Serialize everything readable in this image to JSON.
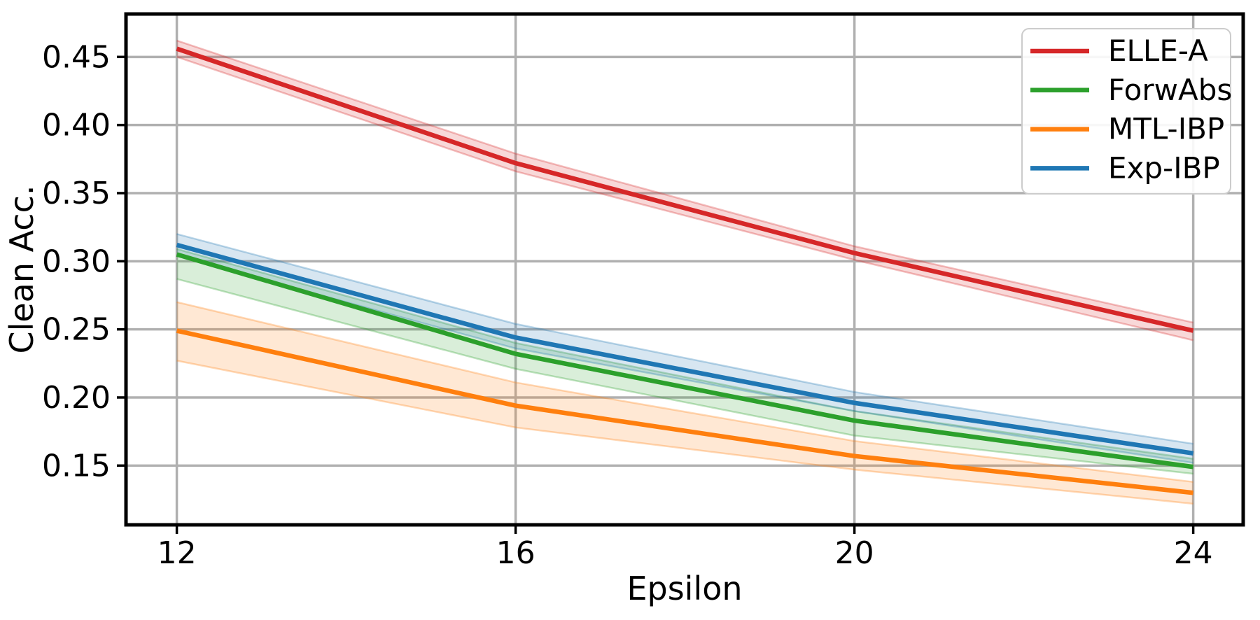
{
  "chart_data": {
    "type": "line",
    "title": "",
    "xlabel": "Epsilon",
    "ylabel": "Clean Acc.",
    "x": [
      12,
      16,
      20,
      24
    ],
    "series": [
      {
        "name": "ELLE-A",
        "color": "#d62728",
        "values": [
          0.456,
          0.372,
          0.306,
          0.249
        ],
        "band_upper": [
          0.462,
          0.379,
          0.311,
          0.255
        ],
        "band_lower": [
          0.45,
          0.366,
          0.301,
          0.242
        ]
      },
      {
        "name": "ForwAbs",
        "color": "#2ca02c",
        "values": [
          0.305,
          0.232,
          0.183,
          0.149
        ],
        "band_upper": [
          0.309,
          0.24,
          0.19,
          0.155
        ],
        "band_lower": [
          0.287,
          0.221,
          0.172,
          0.144
        ]
      },
      {
        "name": "MTL-IBP",
        "color": "#ff7f0e",
        "values": [
          0.249,
          0.194,
          0.157,
          0.13
        ],
        "band_upper": [
          0.27,
          0.211,
          0.168,
          0.138
        ],
        "band_lower": [
          0.227,
          0.178,
          0.147,
          0.122
        ]
      },
      {
        "name": "Exp-IBP",
        "color": "#1f77b4",
        "values": [
          0.312,
          0.244,
          0.196,
          0.159
        ],
        "band_upper": [
          0.32,
          0.254,
          0.204,
          0.166
        ],
        "band_lower": [
          0.304,
          0.236,
          0.19,
          0.152
        ]
      }
    ],
    "xticks": [
      12,
      16,
      20,
      24
    ],
    "xtick_labels": [
      "12",
      "16",
      "20",
      "24"
    ],
    "yticks": [
      0.15,
      0.2,
      0.25,
      0.3,
      0.35,
      0.4,
      0.45
    ],
    "ytick_labels": [
      "0.15",
      "0.20",
      "0.25",
      "0.30",
      "0.35",
      "0.40",
      "0.45"
    ],
    "xlim": [
      11.4,
      24.59
    ],
    "ylim": [
      0.1065,
      0.4815
    ],
    "grid": true,
    "legend_position": "upper right",
    "legend": [
      "ELLE-A",
      "ForwAbs",
      "MTL-IBP",
      "Exp-IBP"
    ]
  },
  "styles": {
    "background": "#ffffff",
    "grid_color": "#b0b0b0",
    "spine_color": "#000000",
    "text_color": "#000000",
    "legend_border_color": "#cccccc",
    "legend_fill": "#ffffff",
    "band_opacity": 0.18,
    "band_edge_opacity": 0.3
  }
}
